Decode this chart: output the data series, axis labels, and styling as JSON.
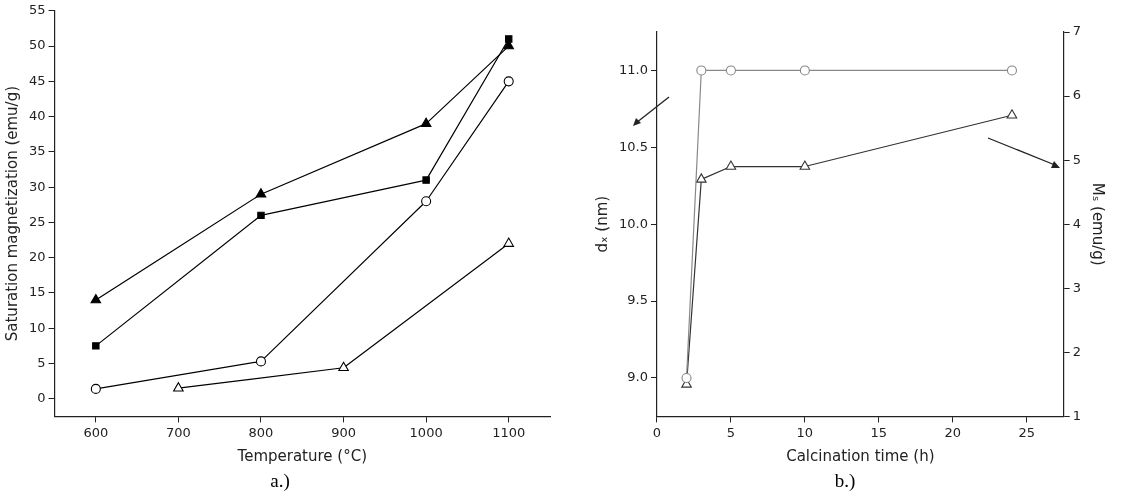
{
  "chart_data": [
    {
      "type": "line",
      "xlabel": "Temperature (°C)",
      "ylabel": "Saturation magnetization (emu/g)",
      "xlim": [
        550,
        1150
      ],
      "xticks": [
        600,
        700,
        800,
        900,
        1000,
        1100
      ],
      "ylim": [
        -2.5,
        55
      ],
      "yticks": [
        0,
        5,
        10,
        15,
        20,
        25,
        30,
        35,
        40,
        45,
        50,
        55
      ],
      "grid": false,
      "legend": false,
      "annotations": [
        "a.)"
      ],
      "series": [
        {
          "color": "#000000",
          "marker": "triangle",
          "x": [
            600,
            800,
            1000,
            1100
          ],
          "values": [
            14,
            29,
            39,
            50
          ]
        },
        {
          "color": "#000000",
          "marker": "square",
          "x": [
            600,
            800,
            1000,
            1100
          ],
          "values": [
            7.5,
            26,
            31,
            51
          ]
        },
        {
          "color": "#000000",
          "marker": "circle-open",
          "x": [
            600,
            800,
            1000,
            1100
          ],
          "values": [
            1.4,
            5.3,
            28,
            45
          ]
        },
        {
          "color": "#000000",
          "marker": "triangle-open",
          "x": [
            700,
            900,
            1100
          ],
          "values": [
            1.5,
            4.4,
            22
          ]
        }
      ]
    },
    {
      "type": "line",
      "xlabel": "Calcination time (h)",
      "ylabel": "dₓ (nm)",
      "y2label": "Mₛ (emu/g)",
      "xlim": [
        0,
        27.5
      ],
      "xticks": [
        0,
        5,
        10,
        15,
        20,
        25
      ],
      "ylim": [
        8.75,
        11.25
      ],
      "yticks": [
        {
          "value": 9,
          "label": "9.0"
        },
        {
          "value": 9.5,
          "label": "9.5"
        },
        {
          "value": 10,
          "label": "10.0"
        },
        {
          "value": 10.5,
          "label": "10.5"
        },
        {
          "value": 11,
          "label": "11.0"
        }
      ],
      "y2lim": [
        1,
        7
      ],
      "y2ticks": [
        1,
        2,
        3,
        4,
        5,
        6,
        7
      ],
      "grid": false,
      "legend": false,
      "annotations": [
        "b.)"
      ],
      "series": [
        {
          "color": "#888888",
          "marker": "circle-open",
          "x": [
            2,
            3,
            5,
            10,
            24
          ],
          "values": [
            9.0,
            11.0,
            11.0,
            11.0,
            11.0
          ]
        },
        {
          "color": "#333333",
          "marker": "triangle-open",
          "axis": "y2",
          "x": [
            2,
            3,
            5,
            10,
            24
          ],
          "values": [
            1.5,
            4.7,
            4.9,
            4.9,
            5.7
          ]
        }
      ]
    }
  ]
}
